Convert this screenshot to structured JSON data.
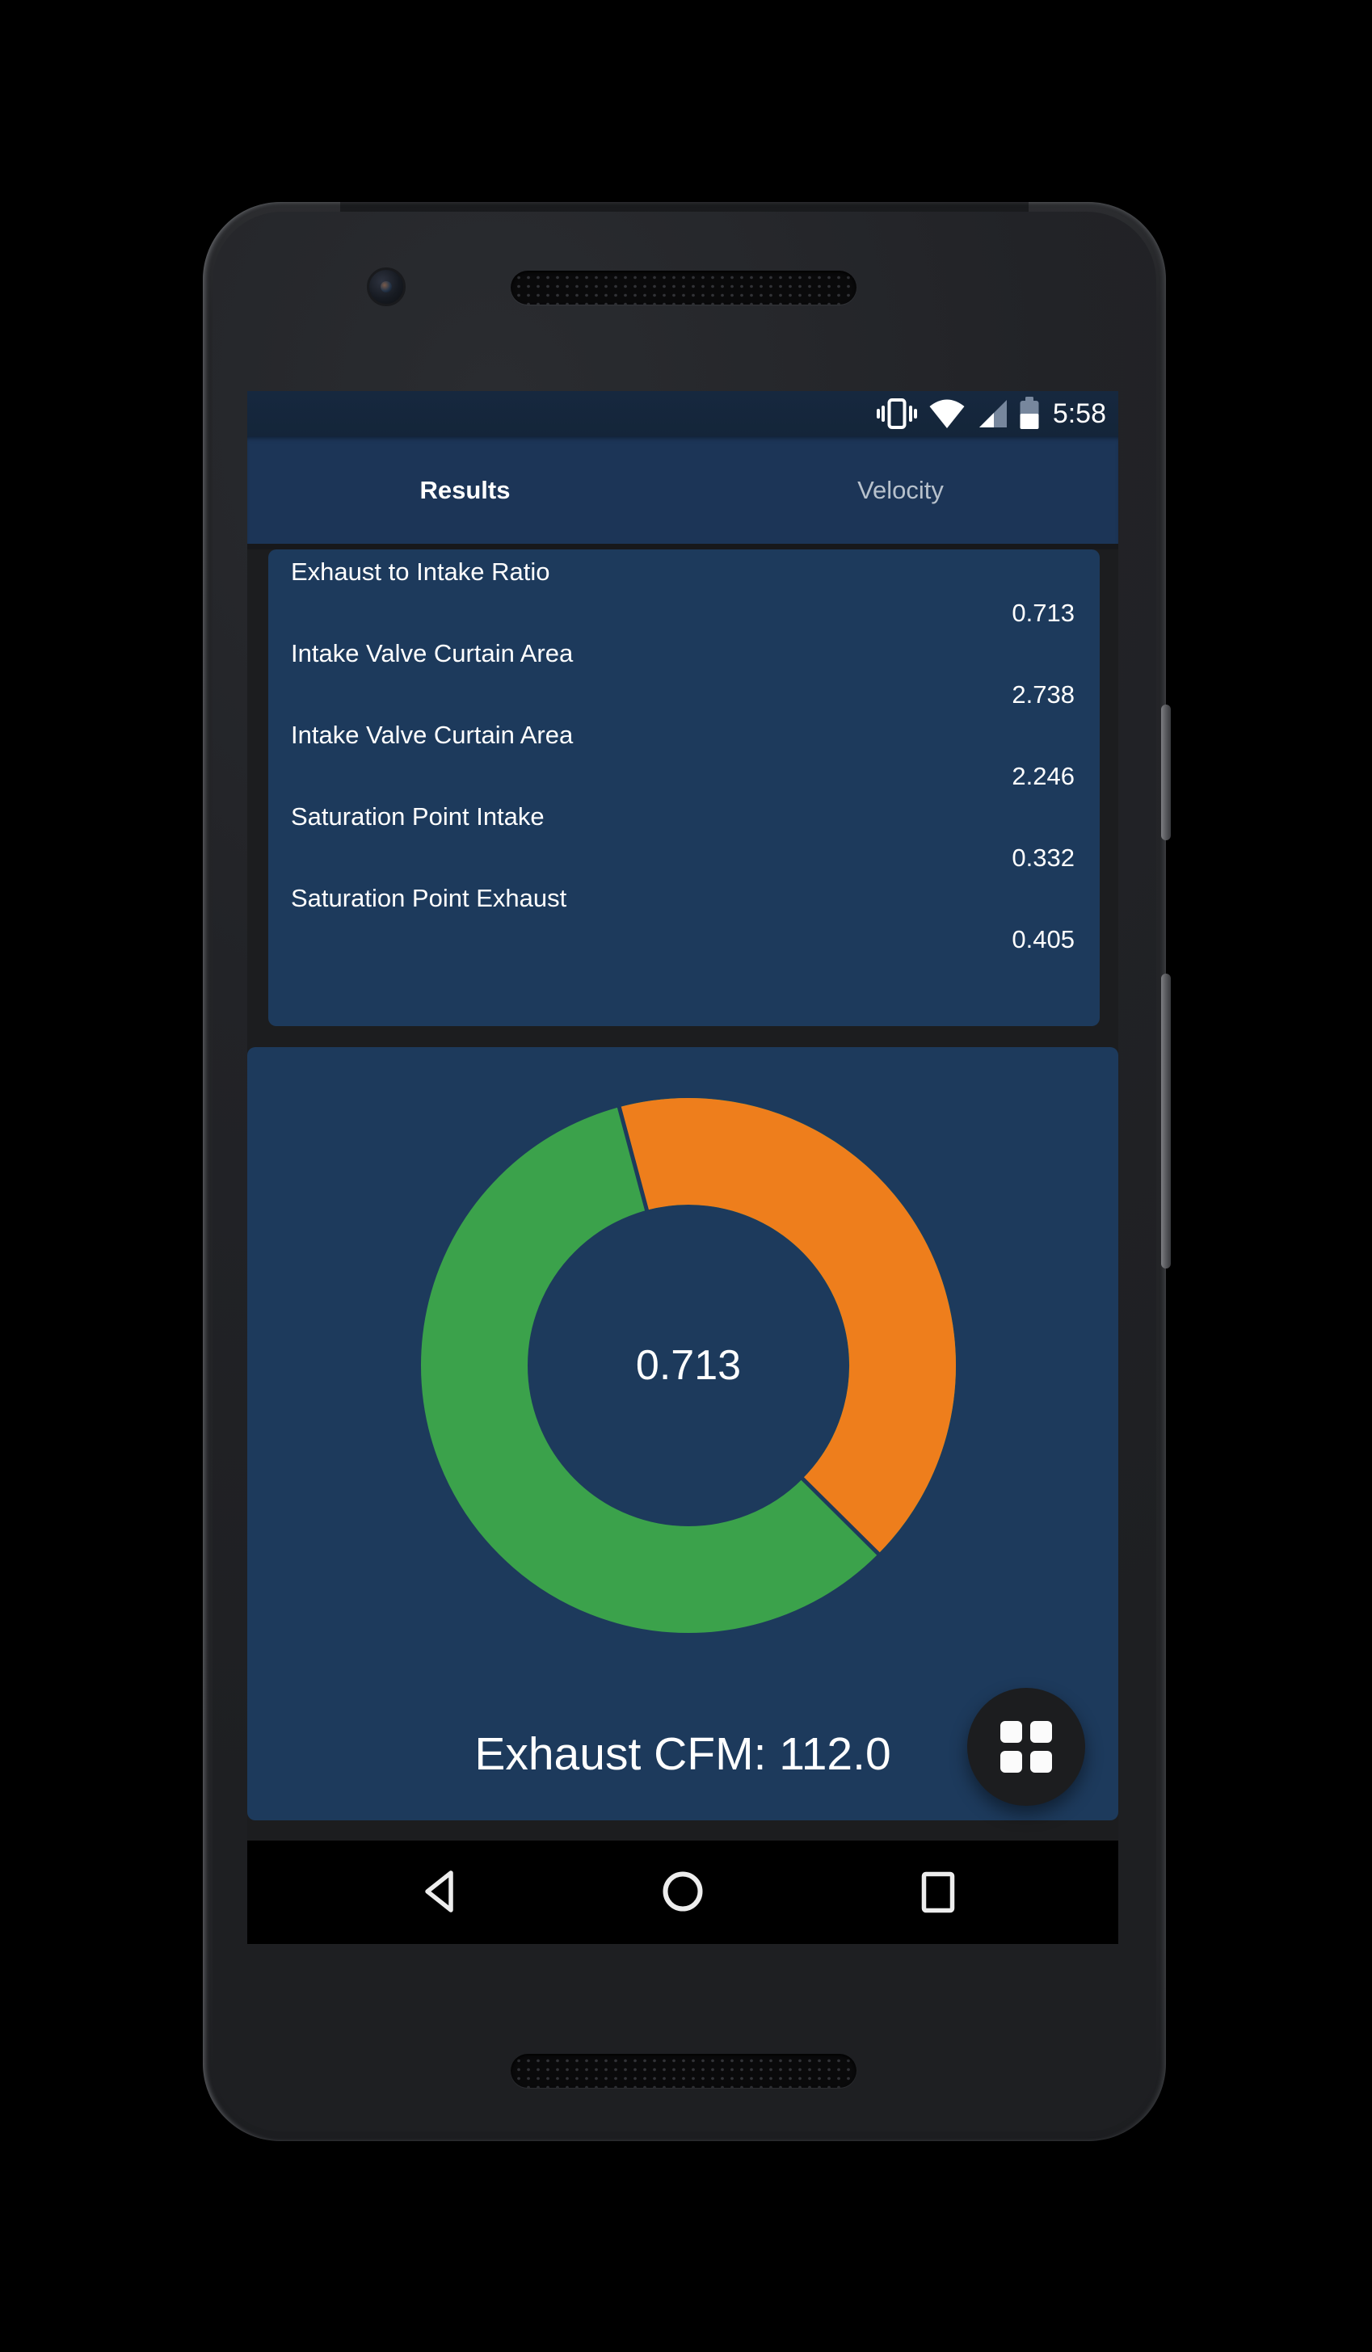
{
  "status_bar": {
    "time": "5:58",
    "icons": [
      "vibrate-icon",
      "wifi-icon",
      "cell-signal-icon",
      "battery-icon"
    ]
  },
  "tab_bar": {
    "tabs": [
      {
        "label": "Results",
        "active": true
      },
      {
        "label": "Velocity",
        "active": false
      }
    ]
  },
  "results": {
    "rows": [
      {
        "label": "Exhaust to Intake Ratio",
        "value": "0.713"
      },
      {
        "label": "Intake Valve Curtain Area",
        "value": "2.738"
      },
      {
        "label": "Intake Valve Curtain Area",
        "value": "2.246"
      },
      {
        "label": "Saturation Point Intake",
        "value": "0.332"
      },
      {
        "label": "Saturation Point Exhaust",
        "value": "0.405"
      }
    ]
  },
  "chart_data": {
    "type": "pie",
    "style": "donut",
    "center_label": "0.713",
    "caption": "Exhaust CFM: 112.0",
    "start_angle_deg": -15,
    "hole_ratio": 0.6,
    "legend": false,
    "slices": [
      {
        "name": "exhaust-share",
        "color": "#ee7e1c",
        "fraction": 0.416
      },
      {
        "name": "intake-share",
        "color": "#3ba24b",
        "fraction": 0.584
      }
    ]
  },
  "fab": {
    "icon": "grid-icon"
  },
  "nav_bar": {
    "buttons": [
      "back",
      "home",
      "recents"
    ]
  },
  "colors": {
    "panel_bg": "#1d3a5c",
    "tab_bar_bg": "#1c3557",
    "status_bar_bg": "#16283f",
    "app_bg": "#1c1d1f",
    "nav_bar_bg": "#000000",
    "fab_bg": "#1c1d1f",
    "accent_green": "#3ba24b",
    "accent_orange": "#ee7e1c",
    "text_primary": "#ffffff",
    "text_secondary": "#b7c1cc",
    "status_icon_dim": "#77879d"
  }
}
